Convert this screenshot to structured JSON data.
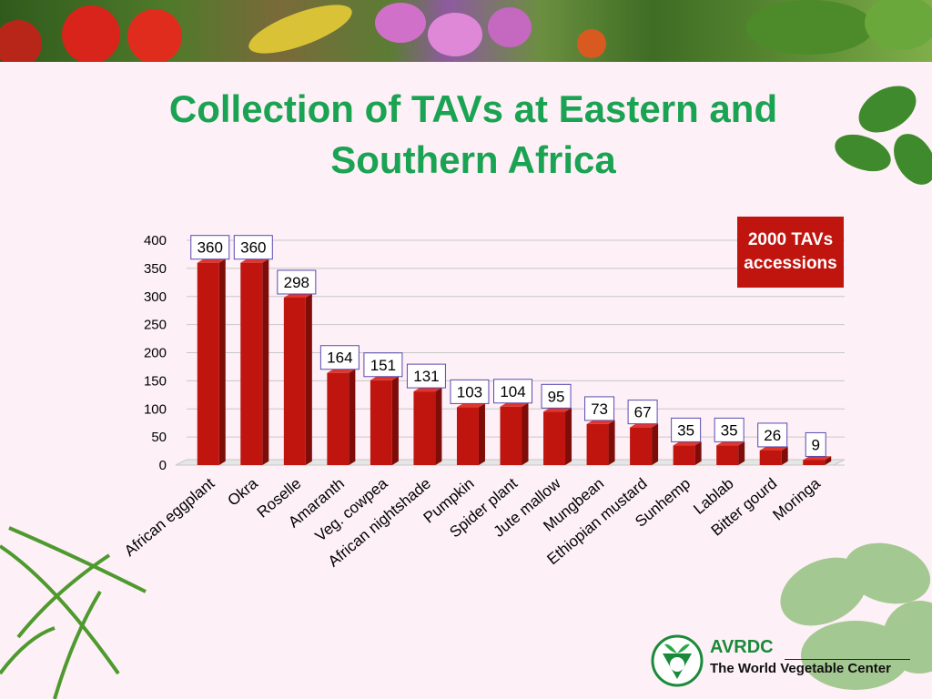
{
  "slide": {
    "title_line1": "Collection of TAVs at Eastern and",
    "title_line2": "Southern Africa",
    "badge_line1": "2000 TAVs",
    "badge_line2": "accessions"
  },
  "logo": {
    "name": "AVRDC",
    "tagline": "The World Vegetable Center"
  },
  "colors": {
    "title": "#1aa352",
    "bar": "#c0150f",
    "badge": "#c0150f",
    "background": "#fdf0f6"
  },
  "chart_data": {
    "type": "bar",
    "title": "",
    "xlabel": "",
    "ylabel": "",
    "ylim": [
      0,
      400
    ],
    "yticks": [
      0,
      50,
      100,
      150,
      200,
      250,
      300,
      350,
      400
    ],
    "grid": true,
    "categories": [
      "African eggplant",
      "Okra",
      "Roselle",
      "Amaranth",
      "Veg. cowpea",
      "African nightshade",
      "Pumpkin",
      "Spider plant",
      "Jute mallow",
      "Mungbean",
      "Ethiopian mustard",
      "Sunhemp",
      "Lablab",
      "Bitter gourd",
      "Moringa"
    ],
    "values": [
      360,
      360,
      298,
      164,
      151,
      131,
      103,
      104,
      95,
      73,
      67,
      35,
      35,
      26,
      9
    ]
  }
}
